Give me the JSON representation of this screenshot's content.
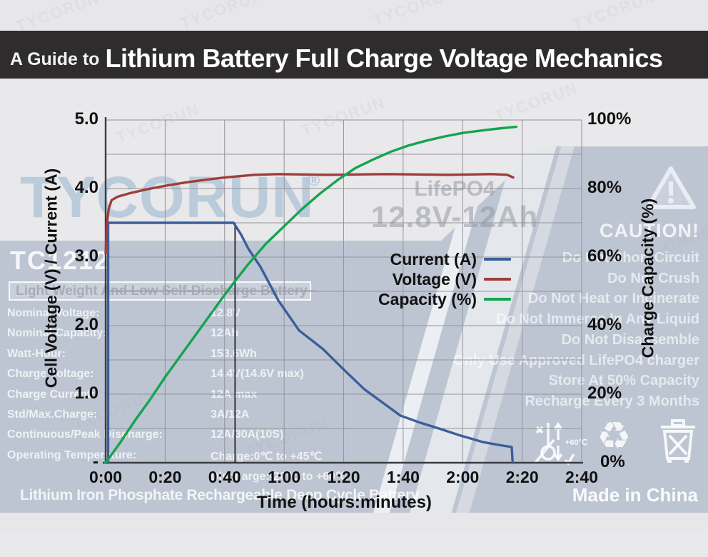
{
  "header": {
    "prefix": "A Guide to",
    "title": "Lithium Battery Full Charge Voltage Mechanics"
  },
  "chart_data": {
    "type": "line",
    "xlabel": "Time (hours:minutes)",
    "ylabel_left": "Cell Voltage (V) / Current (A)",
    "ylabel_right": "Charge Capacity (%)",
    "x_ticks": [
      "0:00",
      "0:20",
      "0:40",
      "1:00",
      "1:20",
      "1:40",
      "2:00",
      "2:20",
      "2:40"
    ],
    "x_range_minutes": [
      0,
      160
    ],
    "y_left_ticks": [
      "5.0",
      "4.0",
      "3.0",
      "2.0",
      "1.0",
      "-"
    ],
    "y_left_range": [
      0,
      5
    ],
    "y_right_ticks": [
      "100%",
      "80%",
      "60%",
      "40%",
      "20%",
      "0%"
    ],
    "y_right_range": [
      0,
      100
    ],
    "grid": {
      "x_step_minutes": 20,
      "y_step_left": 0.5
    },
    "legend_position": "center-right",
    "marker_line": {
      "x_minutes": 43.5,
      "from_value": 3.5,
      "to_value": 0,
      "color": "#26262a"
    },
    "series": [
      {
        "name": "Current (A)",
        "axis": "left",
        "color": "#3b5e9b",
        "points": [
          [
            0,
            0
          ],
          [
            0.85,
            0
          ],
          [
            0.85,
            3.5
          ],
          [
            43,
            3.5
          ],
          [
            45.5,
            3.33
          ],
          [
            48,
            3.12
          ],
          [
            52,
            2.86
          ],
          [
            58,
            2.37
          ],
          [
            65,
            1.93
          ],
          [
            73,
            1.66
          ],
          [
            80,
            1.36
          ],
          [
            87,
            1.07
          ],
          [
            93,
            0.88
          ],
          [
            99,
            0.69
          ],
          [
            106,
            0.58
          ],
          [
            112,
            0.5
          ],
          [
            119,
            0.4
          ],
          [
            127,
            0.3
          ],
          [
            132,
            0.26
          ],
          [
            136.5,
            0.23
          ],
          [
            136.8,
            0
          ]
        ]
      },
      {
        "name": "Voltage (V)",
        "axis": "left",
        "color": "#a03d3b",
        "points": [
          [
            0,
            3.05
          ],
          [
            0.5,
            3.5
          ],
          [
            1,
            3.7
          ],
          [
            2,
            3.83
          ],
          [
            4,
            3.88
          ],
          [
            8,
            3.93
          ],
          [
            14,
            3.99
          ],
          [
            20,
            4.04
          ],
          [
            27,
            4.09
          ],
          [
            34,
            4.13
          ],
          [
            40,
            4.16
          ],
          [
            45,
            4.18
          ],
          [
            50,
            4.2
          ],
          [
            58,
            4.21
          ],
          [
            75,
            4.2
          ],
          [
            95,
            4.21
          ],
          [
            115,
            4.2
          ],
          [
            130,
            4.21
          ],
          [
            135,
            4.2
          ],
          [
            137,
            4.16
          ]
        ]
      },
      {
        "name": "Capacity (%)",
        "axis": "right",
        "color": "#14a44f",
        "points": [
          [
            0,
            0
          ],
          [
            5,
            6
          ],
          [
            10,
            12.5
          ],
          [
            15,
            18.5
          ],
          [
            20,
            25
          ],
          [
            25,
            31
          ],
          [
            30,
            37
          ],
          [
            35,
            43
          ],
          [
            40,
            49
          ],
          [
            43.5,
            53
          ],
          [
            48,
            58
          ],
          [
            54,
            64
          ],
          [
            60,
            69
          ],
          [
            66,
            74
          ],
          [
            72,
            78.5
          ],
          [
            78,
            82.5
          ],
          [
            84,
            86
          ],
          [
            90,
            88.5
          ],
          [
            96,
            90.8
          ],
          [
            102,
            92.6
          ],
          [
            108,
            94
          ],
          [
            114,
            95.2
          ],
          [
            120,
            96.2
          ],
          [
            126,
            96.9
          ],
          [
            132,
            97.5
          ],
          [
            138,
            98
          ]
        ]
      }
    ]
  },
  "watermarks": {
    "brand": "TYCORUN",
    "reg": "®",
    "product_line1": "LifePO4",
    "product_line2": "12.8V-12Ah",
    "model": "TC1212",
    "tagline": "Light Weight And Low Self-Discharge Battery",
    "bottom": "Lithium Iron Phosphate Rechargeable Deep Cycle Battery",
    "made_in": "Made in China",
    "temp_icon_label": "+60℃",
    "recycle_glyph": "♻"
  },
  "specs": [
    {
      "label": "Nominal Voltage:",
      "value": "12.8V"
    },
    {
      "label": "Nominal Capacity:",
      "value": "12Ah"
    },
    {
      "label": "Watt-Hour:",
      "value": "153.6Wh"
    },
    {
      "label": "Charge Voltage:",
      "value": "14.4V(14.6V max)"
    },
    {
      "label": "Charge Current:",
      "value": "12A max"
    },
    {
      "label": "Std/Max.Charge:",
      "value": "3A/12A"
    },
    {
      "label": "Continuous/Peak Discharge:",
      "value": "12A/30A(10S)"
    },
    {
      "label": "Operating Temperature:",
      "value": "Charge:0℃ to +45℃"
    },
    {
      "label": "",
      "value": "Discharge:-20℃ to +60℃"
    }
  ],
  "caution": {
    "title": "CAUTION!",
    "lines": [
      "Do Not Short Circuit",
      "Do Not Crush",
      "Do Not Heat or Incinerate",
      "Do Not Immerse In Any Liquid",
      "Do Not Disassemble",
      "Only Use Approved LifePO4 charger",
      "Store At 50% Capacity",
      "Recharge Every 3 Months"
    ]
  }
}
